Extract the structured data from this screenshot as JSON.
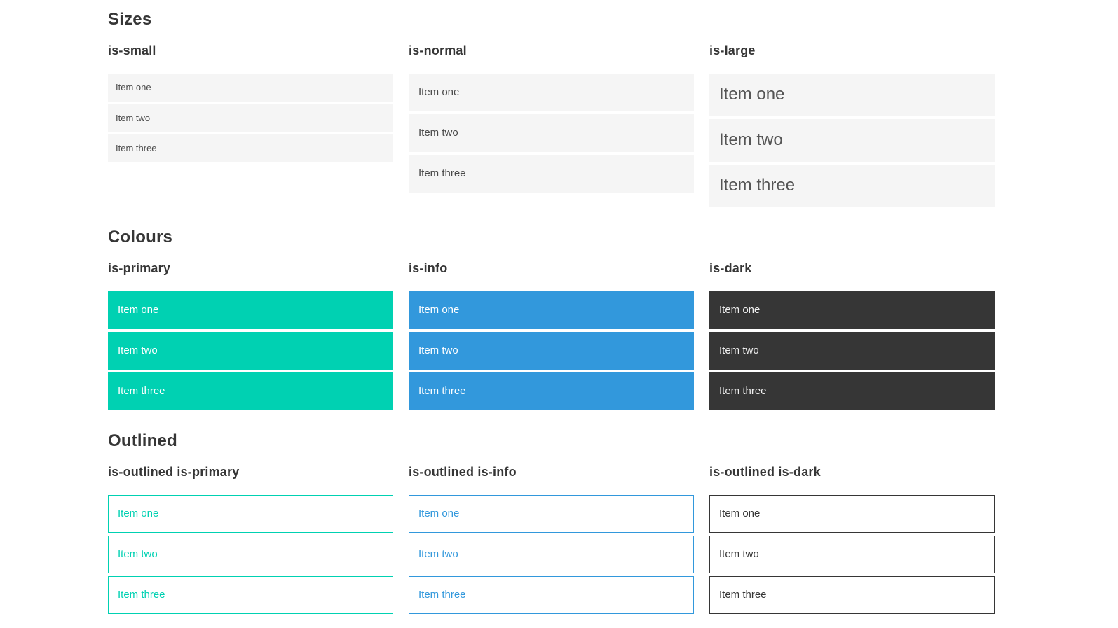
{
  "colors": {
    "primary": "#00d1b2",
    "info": "#3298dc",
    "dark": "#363636",
    "item_background": "#f5f5f5",
    "item_text": "#4a4a4a",
    "heading_text": "#363636"
  },
  "sections": [
    {
      "title": "Sizes",
      "groups": [
        {
          "label": "is-small",
          "items": [
            "Item one",
            "Item two",
            "Item three"
          ]
        },
        {
          "label": "is-normal",
          "items": [
            "Item one",
            "Item two",
            "Item three"
          ]
        },
        {
          "label": "is-large",
          "items": [
            "Item one",
            "Item two",
            "Item three"
          ]
        }
      ]
    },
    {
      "title": "Colours",
      "groups": [
        {
          "label": "is-primary",
          "items": [
            "Item one",
            "Item two",
            "Item three"
          ]
        },
        {
          "label": "is-info",
          "items": [
            "Item one",
            "Item two",
            "Item three"
          ]
        },
        {
          "label": "is-dark",
          "items": [
            "Item one",
            "Item two",
            "Item three"
          ]
        }
      ]
    },
    {
      "title": "Outlined",
      "groups": [
        {
          "label": "is-outlined is-primary",
          "items": [
            "Item one",
            "Item two",
            "Item three"
          ]
        },
        {
          "label": "is-outlined is-info",
          "items": [
            "Item one",
            "Item two",
            "Item three"
          ]
        },
        {
          "label": "is-outlined is-dark",
          "items": [
            "Item one",
            "Item two",
            "Item three"
          ]
        }
      ]
    }
  ]
}
